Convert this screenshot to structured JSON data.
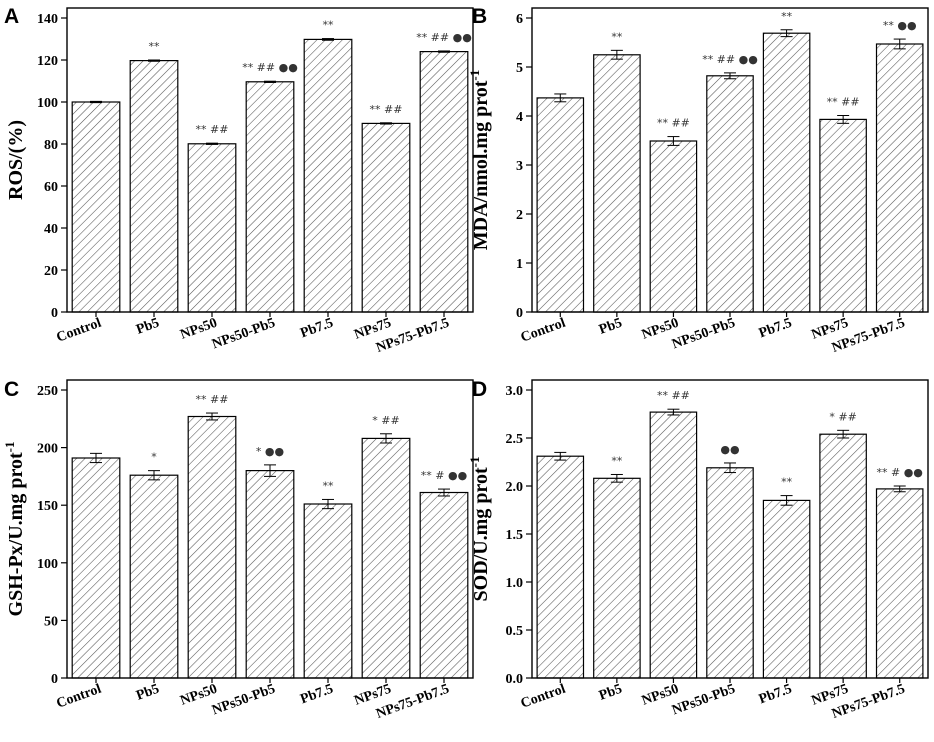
{
  "colors": {
    "axis": "#000000",
    "bar_fill": "#ffffff",
    "hatch": "#555555",
    "text": "#000000"
  },
  "chart_data": [
    {
      "type": "bar",
      "panel": "A",
      "categories": [
        "Control",
        "Pb5",
        "NPs50",
        "NPs50-Pb5",
        "Pb7.5",
        "NPs75",
        "NPs75-Pb7.5"
      ],
      "values": [
        100,
        119.7,
        80.1,
        109.6,
        129.8,
        89.8,
        124.0
      ],
      "errors": [
        0.3,
        0.3,
        0.3,
        0.3,
        0.4,
        0.3,
        0.3
      ],
      "annotations": [
        "",
        "**",
        "** ##",
        "** ## ●●",
        "**",
        "** ##",
        "** ## ●●"
      ],
      "ylabel": "ROS/(%)",
      "ylabel_sup": "",
      "ylim": [
        0,
        140
      ],
      "yticks": [
        0,
        20,
        40,
        60,
        80,
        100,
        120,
        140
      ],
      "ytick_labels": [
        "0",
        "20",
        "40",
        "60",
        "80",
        "100",
        "120",
        "140"
      ]
    },
    {
      "type": "bar",
      "panel": "B",
      "categories": [
        "Control",
        "Pb5",
        "NPs50",
        "NPs50-Pb5",
        "Pb7.5",
        "NPs75",
        "NPs75-Pb7.5"
      ],
      "values": [
        4.37,
        5.25,
        3.49,
        4.82,
        5.69,
        3.93,
        5.47
      ],
      "errors": [
        0.08,
        0.09,
        0.09,
        0.06,
        0.07,
        0.08,
        0.1
      ],
      "annotations": [
        "",
        "**",
        "** ##",
        "** ## ●●",
        "**",
        "** ##",
        "** ●●"
      ],
      "ylabel": "MDA/nmol.mg prot",
      "ylabel_sup": "-1",
      "ylim": [
        0,
        6
      ],
      "yticks": [
        0,
        1,
        2,
        3,
        4,
        5,
        6
      ],
      "ytick_labels": [
        "0",
        "1",
        "2",
        "3",
        "4",
        "5",
        "6"
      ]
    },
    {
      "type": "bar",
      "panel": "C",
      "categories": [
        "Control",
        "Pb5",
        "NPs50",
        "NPs50-Pb5",
        "Pb7.5",
        "NPs75",
        "NPs75-Pb7.5"
      ],
      "values": [
        191,
        176,
        227,
        180,
        151,
        208,
        161
      ],
      "errors": [
        4,
        4,
        3,
        5,
        4,
        4,
        3
      ],
      "annotations": [
        "",
        "*",
        "** ##",
        "* ●●",
        "**",
        "* ##",
        "** # ●●"
      ],
      "ylabel": "GSH-Px/U.mg prot",
      "ylabel_sup": "-1",
      "ylim": [
        0,
        250
      ],
      "yticks": [
        0,
        50,
        100,
        150,
        200,
        250
      ],
      "ytick_labels": [
        "0",
        "50",
        "100",
        "150",
        "200",
        "250"
      ]
    },
    {
      "type": "bar",
      "panel": "D",
      "categories": [
        "Control",
        "Pb5",
        "NPs50",
        "NPs50-Pb5",
        "Pb7.5",
        "NPs75",
        "NPs75-Pb7.5"
      ],
      "values": [
        2.31,
        2.08,
        2.77,
        2.19,
        1.85,
        2.54,
        1.97
      ],
      "errors": [
        0.04,
        0.04,
        0.03,
        0.05,
        0.05,
        0.04,
        0.03
      ],
      "annotations": [
        "",
        "**",
        "** ##",
        "●●",
        "**",
        "* ##",
        "** # ●●"
      ],
      "ylabel": "SOD/U.mg prot",
      "ylabel_sup": "-1",
      "ylim": [
        0,
        3
      ],
      "yticks": [
        0,
        0.5,
        1,
        1.5,
        2,
        2.5,
        3
      ],
      "ytick_labels": [
        "0.0",
        "0.5",
        "1.0",
        "1.5",
        "2.0",
        "2.5",
        "3.0"
      ]
    }
  ]
}
